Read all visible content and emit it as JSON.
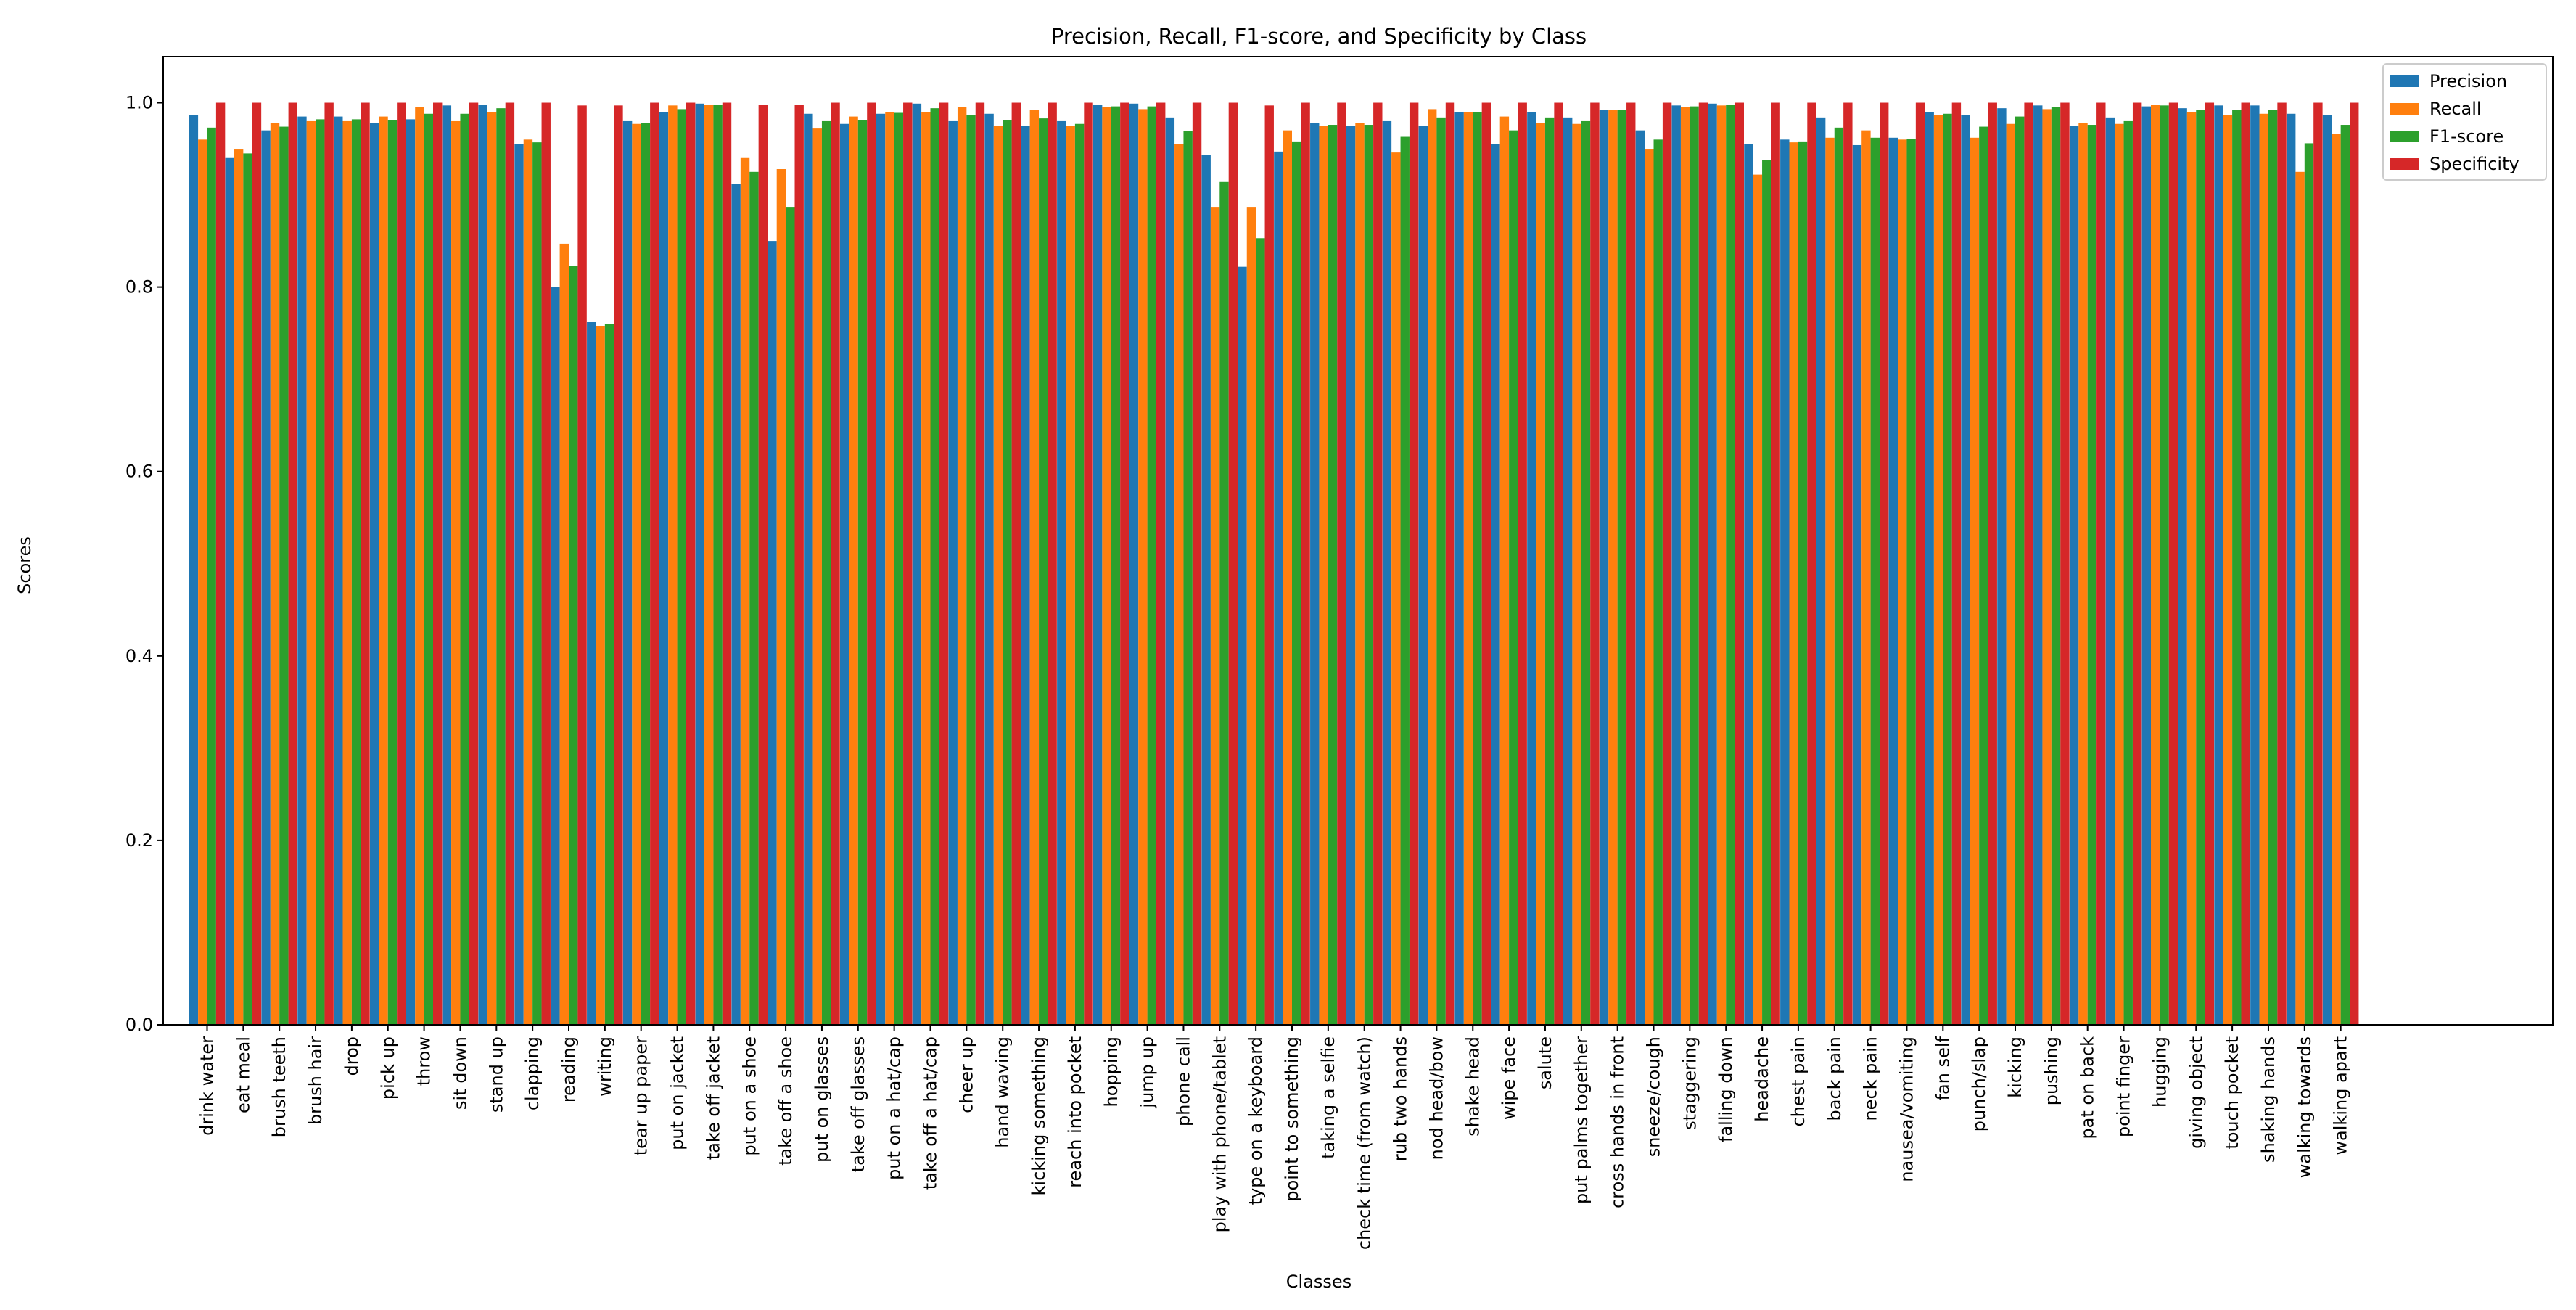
{
  "chart_data": {
    "type": "bar",
    "title": "Precision, Recall, F1-score, and Specificity by Class",
    "xlabel": "Classes",
    "ylabel": "Scores",
    "ylim": [
      0,
      1.05
    ],
    "yticks": [
      0.0,
      0.2,
      0.4,
      0.6,
      0.8,
      1.0
    ],
    "ytick_labels": [
      "0.0",
      "0.2",
      "0.4",
      "0.6",
      "0.8",
      "1.0"
    ],
    "grid": false,
    "legend_position": "top-right",
    "categories": [
      "drink water",
      "eat meal",
      "brush teeth",
      "brush hair",
      "drop",
      "pick up",
      "throw",
      "sit down",
      "stand up",
      "clapping",
      "reading",
      "writing",
      "tear up paper",
      "put on jacket",
      "take off jacket",
      "put on a shoe",
      "take off a shoe",
      "put on glasses",
      "take off glasses",
      "put on a hat/cap",
      "take off a hat/cap",
      "cheer up",
      "hand waving",
      "kicking something",
      "reach into pocket",
      "hopping",
      "jump up",
      "phone call",
      "play with phone/tablet",
      "type on a keyboard",
      "point to something",
      "taking a selfie",
      "check time (from watch)",
      "rub two hands",
      "nod head/bow",
      "shake head",
      "wipe face",
      "salute",
      "put palms together",
      "cross hands in front",
      "sneeze/cough",
      "staggering",
      "falling down",
      "headache",
      "chest pain",
      "back pain",
      "neck pain",
      "nausea/vomiting",
      "fan self",
      "punch/slap",
      "kicking",
      "pushing",
      "pat on back",
      "point finger",
      "hugging",
      "giving object",
      "touch pocket",
      "shaking hands",
      "walking towards",
      "walking apart"
    ],
    "series": [
      {
        "name": "Precision",
        "color": "#1f77b4",
        "values": [
          0.987,
          0.94,
          0.97,
          0.985,
          0.985,
          0.978,
          0.982,
          0.997,
          0.998,
          0.955,
          0.8,
          0.762,
          0.98,
          0.99,
          0.999,
          0.912,
          0.85,
          0.988,
          0.977,
          0.988,
          0.999,
          0.98,
          0.988,
          0.975,
          0.98,
          0.998,
          0.999,
          0.984,
          0.943,
          0.822,
          0.947,
          0.978,
          0.975,
          0.98,
          0.975,
          0.99,
          0.955,
          0.99,
          0.984,
          0.992,
          0.97,
          0.997,
          0.999,
          0.955,
          0.96,
          0.984,
          0.954,
          0.962,
          0.99,
          0.987,
          0.994,
          0.997,
          0.975,
          0.984,
          0.996,
          0.994,
          0.997,
          0.997,
          0.988,
          0.987
        ]
      },
      {
        "name": "Recall",
        "color": "#ff7f0e",
        "values": [
          0.96,
          0.95,
          0.978,
          0.98,
          0.98,
          0.985,
          0.995,
          0.98,
          0.99,
          0.96,
          0.847,
          0.758,
          0.977,
          0.997,
          0.998,
          0.94,
          0.928,
          0.972,
          0.985,
          0.99,
          0.99,
          0.995,
          0.975,
          0.992,
          0.975,
          0.995,
          0.993,
          0.955,
          0.887,
          0.887,
          0.97,
          0.975,
          0.978,
          0.946,
          0.993,
          0.99,
          0.985,
          0.978,
          0.977,
          0.992,
          0.95,
          0.995,
          0.997,
          0.922,
          0.957,
          0.962,
          0.97,
          0.96,
          0.987,
          0.962,
          0.977,
          0.993,
          0.978,
          0.977,
          0.998,
          0.99,
          0.987,
          0.988,
          0.925,
          0.966
        ]
      },
      {
        "name": "F1-score",
        "color": "#2ca02c",
        "values": [
          0.973,
          0.945,
          0.974,
          0.982,
          0.982,
          0.981,
          0.988,
          0.988,
          0.994,
          0.957,
          0.823,
          0.76,
          0.978,
          0.993,
          0.998,
          0.925,
          0.887,
          0.98,
          0.981,
          0.989,
          0.994,
          0.987,
          0.981,
          0.983,
          0.977,
          0.996,
          0.996,
          0.969,
          0.914,
          0.853,
          0.958,
          0.976,
          0.976,
          0.963,
          0.984,
          0.99,
          0.97,
          0.984,
          0.98,
          0.992,
          0.96,
          0.996,
          0.998,
          0.938,
          0.958,
          0.973,
          0.962,
          0.961,
          0.988,
          0.974,
          0.985,
          0.995,
          0.976,
          0.98,
          0.997,
          0.992,
          0.992,
          0.992,
          0.956,
          0.976
        ]
      },
      {
        "name": "Specificity",
        "color": "#d62728",
        "values": [
          1.0,
          1.0,
          1.0,
          1.0,
          1.0,
          1.0,
          1.0,
          1.0,
          1.0,
          1.0,
          0.997,
          0.997,
          1.0,
          1.0,
          1.0,
          0.998,
          0.998,
          1.0,
          1.0,
          1.0,
          1.0,
          1.0,
          1.0,
          1.0,
          1.0,
          1.0,
          1.0,
          1.0,
          1.0,
          0.997,
          1.0,
          1.0,
          1.0,
          1.0,
          1.0,
          1.0,
          1.0,
          1.0,
          1.0,
          1.0,
          1.0,
          1.0,
          1.0,
          1.0,
          1.0,
          1.0,
          1.0,
          1.0,
          1.0,
          1.0,
          1.0,
          1.0,
          1.0,
          1.0,
          1.0,
          1.0,
          1.0,
          1.0,
          1.0,
          1.0
        ]
      }
    ]
  }
}
